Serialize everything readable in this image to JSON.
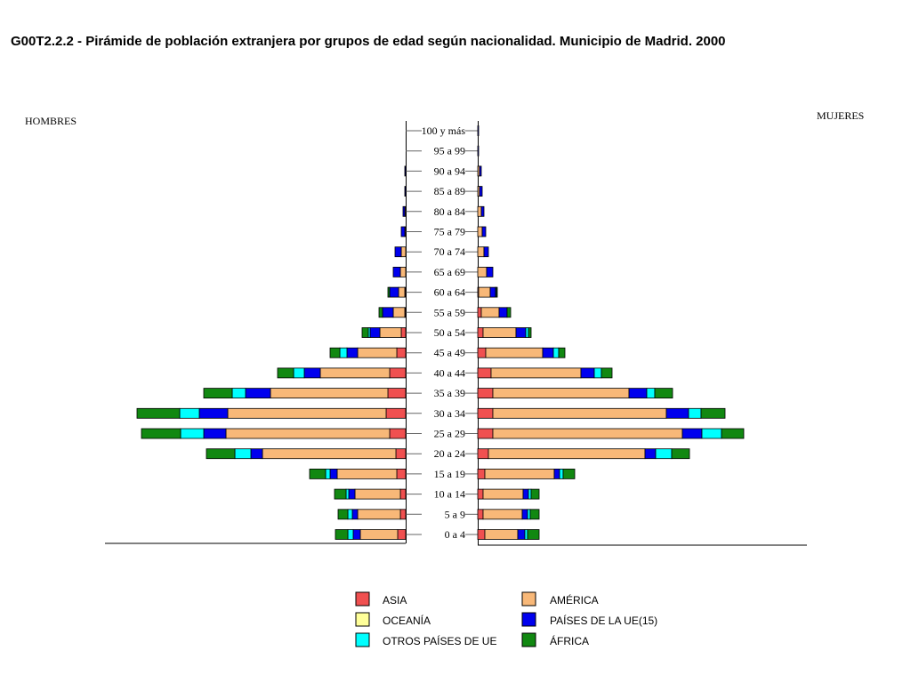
{
  "title": "G00T2.2.2 - Pirámide de población extranjera por grupos de edad según nacionalidad. Municipio de Madrid. 2000",
  "chart_data": {
    "type": "bar",
    "orientation": "horizontal-pyramid",
    "left_label": "HOMBRES",
    "right_label": "MUJERES",
    "categories": [
      "100 y más",
      "95 a 99",
      "90 a 94",
      "85 a 89",
      "80 a 84",
      "75 a 79",
      "70 a 74",
      "65 a 69",
      "60 a 64",
      "55 a 59",
      "50 a 54",
      "45 a 49",
      "40 a  44",
      "35 a 39",
      "30 a 34",
      "25 a 29",
      "20 a 24",
      "15 a 19",
      "10 a 14",
      "5 a 9",
      "0 a 4"
    ],
    "series_order": [
      "ASIA",
      "AMÉRICA",
      "OCEANÍA",
      "PAÍSES DE LA UE(15)",
      "OTROS PAÍSES DE UE",
      "ÁFRICA"
    ],
    "colors": {
      "ASIA": "#f05050",
      "AMÉRICA": "#f8b878",
      "OCEANÍA": "#ffff99",
      "PAÍSES DE LA UE(15)": "#0000ee",
      "OTROS PAÍSES DE UE": "#00ffff",
      "ÁFRICA": "#118811"
    },
    "hombres": {
      "ASIA": [
        0,
        0,
        0,
        0,
        0,
        0,
        0,
        0,
        1,
        1,
        5,
        10,
        18,
        20,
        22,
        18,
        11,
        10,
        6,
        6,
        9
      ],
      "AMÉRICA": [
        0,
        0,
        0,
        0,
        1,
        1,
        5,
        6,
        7,
        13,
        24,
        44,
        78,
        132,
        178,
        184,
        150,
        67,
        51,
        48,
        42
      ],
      "OCEANÍA": [
        0,
        0,
        0,
        0,
        0,
        0,
        0,
        0,
        0,
        0,
        0,
        0,
        0,
        0,
        0,
        0,
        0,
        0,
        0,
        0,
        0
      ],
      "PAÍSES DE LA UE(15)": [
        0,
        0,
        1,
        1,
        2,
        4,
        7,
        8,
        10,
        12,
        11,
        12,
        18,
        28,
        32,
        25,
        13,
        8,
        7,
        6,
        8
      ],
      "OTROS PAÍSES DE UE": [
        0,
        0,
        0,
        0,
        0,
        0,
        0,
        0,
        0,
        0,
        2,
        8,
        12,
        15,
        22,
        26,
        18,
        5,
        3,
        5,
        6
      ],
      "ÁFRICA": [
        0,
        0,
        0,
        0,
        0,
        0,
        0,
        0,
        2,
        4,
        7,
        11,
        18,
        32,
        48,
        44,
        32,
        18,
        13,
        11,
        14
      ]
    },
    "mujeres": {
      "ASIA": [
        0,
        0,
        0,
        0,
        0,
        0,
        0,
        0,
        1,
        4,
        6,
        9,
        15,
        17,
        17,
        17,
        12,
        8,
        6,
        6,
        8
      ],
      "AMÉRICA": [
        0,
        0,
        2,
        2,
        4,
        5,
        7,
        10,
        13,
        20,
        37,
        64,
        101,
        153,
        195,
        213,
        176,
        78,
        45,
        44,
        37
      ],
      "OCEANÍA": [
        0,
        0,
        0,
        0,
        0,
        0,
        0,
        0,
        0,
        0,
        0,
        0,
        0,
        0,
        0,
        0,
        0,
        0,
        0,
        0,
        0
      ],
      "PAÍSES DE LA UE(15)": [
        1,
        1,
        2,
        3,
        3,
        4,
        5,
        7,
        6,
        9,
        11,
        12,
        15,
        20,
        25,
        22,
        12,
        6,
        6,
        6,
        8
      ],
      "OTROS PAÍSES DE UE": [
        0,
        0,
        0,
        0,
        0,
        0,
        0,
        0,
        1,
        0,
        3,
        6,
        8,
        9,
        14,
        22,
        18,
        4,
        3,
        3,
        3
      ],
      "ÁFRICA": [
        0,
        0,
        0,
        0,
        0,
        0,
        0,
        0,
        1,
        4,
        3,
        7,
        12,
        20,
        27,
        25,
        20,
        13,
        9,
        10,
        13
      ]
    },
    "legend": {
      "col1": [
        "ASIA",
        "OCEANÍA",
        "OTROS PAÍSES DE UE"
      ],
      "col2": [
        "AMÉRICA",
        "PAÍSES DE LA UE(15)",
        "ÁFRICA"
      ]
    }
  }
}
